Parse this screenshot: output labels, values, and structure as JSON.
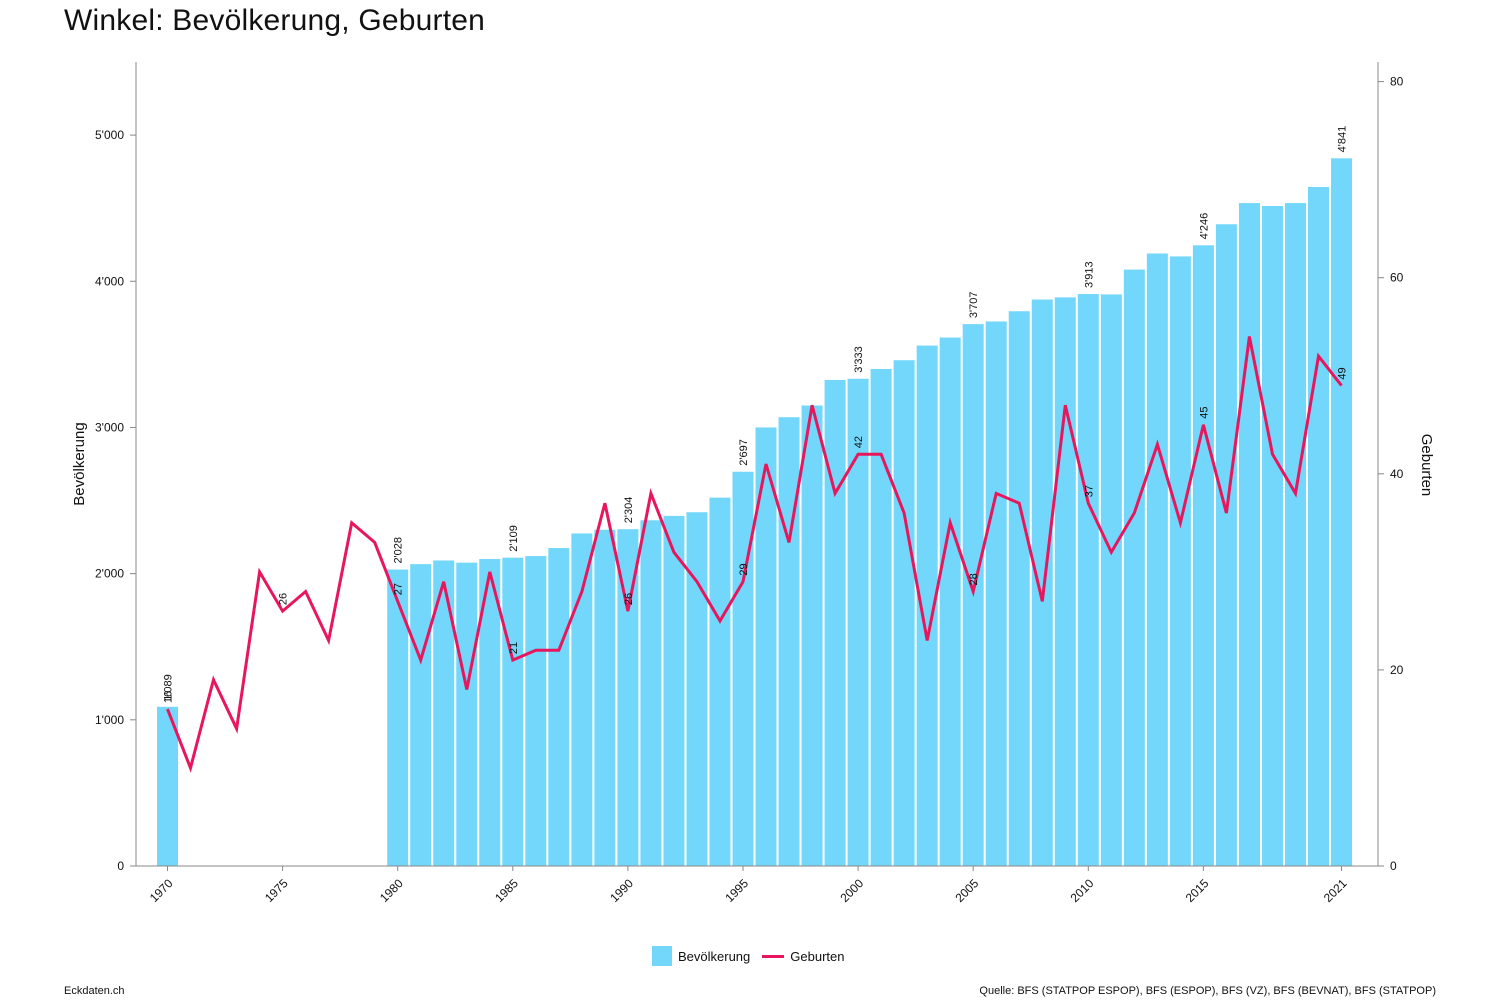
{
  "header": {
    "title": "Winkel: Bevölkerung, Geburten"
  },
  "footer": {
    "left": "Eckdaten.ch",
    "right": "Quelle: BFS (STATPOP ESPOP), BFS (ESPOP), BFS (VZ), BFS (BEVNAT), BFS (STATPOP)"
  },
  "colors": {
    "bars": "#72D7FA",
    "line": "#E8175D",
    "axis": "#888888"
  },
  "legend": {
    "bars_label": "Bevölkerung",
    "line_label": "Geburten"
  },
  "chart_data": {
    "type": "bar+line",
    "x_ticks": [
      "1970",
      "1975",
      "1980",
      "1985",
      "1990",
      "1995",
      "2000",
      "2005",
      "2010",
      "2015",
      "2021"
    ],
    "y_left": {
      "label": "Bevölkerung",
      "range": [
        0,
        5500
      ],
      "ticks": [
        0,
        1000,
        2000,
        3000,
        4000,
        5000
      ],
      "tick_labels": [
        "0",
        "1'000",
        "2'000",
        "3'000",
        "4'000",
        "5'000"
      ]
    },
    "y_right": {
      "label": "Geburten",
      "range": [
        0,
        82
      ],
      "ticks": [
        0,
        20,
        40,
        60,
        80
      ],
      "tick_labels": [
        "0",
        "20",
        "40",
        "60",
        "80"
      ]
    },
    "series": [
      {
        "name": "Bevölkerung",
        "kind": "bar",
        "axis": "left",
        "points": [
          [
            1970,
            1089
          ],
          [
            1980,
            2028
          ],
          [
            1981,
            2065
          ],
          [
            1982,
            2090
          ],
          [
            1983,
            2075
          ],
          [
            1984,
            2100
          ],
          [
            1985,
            2109
          ],
          [
            1986,
            2120
          ],
          [
            1987,
            2175
          ],
          [
            1988,
            2275
          ],
          [
            1989,
            2300
          ],
          [
            1990,
            2304
          ],
          [
            1991,
            2365
          ],
          [
            1992,
            2395
          ],
          [
            1993,
            2420
          ],
          [
            1994,
            2520
          ],
          [
            1995,
            2697
          ],
          [
            1996,
            3000
          ],
          [
            1997,
            3070
          ],
          [
            1998,
            3150
          ],
          [
            1999,
            3325
          ],
          [
            2000,
            3333
          ],
          [
            2001,
            3400
          ],
          [
            2002,
            3460
          ],
          [
            2003,
            3560
          ],
          [
            2004,
            3615
          ],
          [
            2005,
            3707
          ],
          [
            2006,
            3725
          ],
          [
            2007,
            3795
          ],
          [
            2008,
            3875
          ],
          [
            2009,
            3890
          ],
          [
            2010,
            3913
          ],
          [
            2011,
            3910
          ],
          [
            2012,
            4080
          ],
          [
            2013,
            4190
          ],
          [
            2014,
            4170
          ],
          [
            2015,
            4246
          ],
          [
            2016,
            4390
          ],
          [
            2017,
            4535
          ],
          [
            2018,
            4515
          ],
          [
            2019,
            4535
          ],
          [
            2020,
            4645
          ],
          [
            2021,
            4841
          ]
        ]
      },
      {
        "name": "Geburten",
        "kind": "line",
        "axis": "right",
        "points": [
          [
            1970,
            16
          ],
          [
            1971,
            10
          ],
          [
            1972,
            19
          ],
          [
            1973,
            14
          ],
          [
            1974,
            30
          ],
          [
            1975,
            26
          ],
          [
            1976,
            28
          ],
          [
            1977,
            23
          ],
          [
            1978,
            35
          ],
          [
            1979,
            33
          ],
          [
            1980,
            27
          ],
          [
            1981,
            21
          ],
          [
            1982,
            29
          ],
          [
            1983,
            18
          ],
          [
            1984,
            30
          ],
          [
            1985,
            21
          ],
          [
            1986,
            22
          ],
          [
            1987,
            22
          ],
          [
            1988,
            28
          ],
          [
            1989,
            37
          ],
          [
            1990,
            26
          ],
          [
            1991,
            38
          ],
          [
            1992,
            32
          ],
          [
            1993,
            29
          ],
          [
            1994,
            25
          ],
          [
            1995,
            29
          ],
          [
            1996,
            41
          ],
          [
            1997,
            33
          ],
          [
            1998,
            47
          ],
          [
            1999,
            38
          ],
          [
            2000,
            42
          ],
          [
            2001,
            42
          ],
          [
            2002,
            36
          ],
          [
            2003,
            23
          ],
          [
            2004,
            35
          ],
          [
            2005,
            28
          ],
          [
            2006,
            38
          ],
          [
            2007,
            37
          ],
          [
            2008,
            27
          ],
          [
            2009,
            47
          ],
          [
            2010,
            37
          ],
          [
            2011,
            32
          ],
          [
            2012,
            36
          ],
          [
            2013,
            43
          ],
          [
            2014,
            35
          ],
          [
            2015,
            45
          ],
          [
            2016,
            36
          ],
          [
            2017,
            54
          ],
          [
            2018,
            42
          ],
          [
            2019,
            38
          ],
          [
            2020,
            52
          ],
          [
            2021,
            49
          ]
        ]
      }
    ],
    "bar_labels": [
      {
        "year": 1970,
        "text": "1'089"
      },
      {
        "year": 1980,
        "text": "2'028"
      },
      {
        "year": 1985,
        "text": "2'109"
      },
      {
        "year": 1990,
        "text": "2'304"
      },
      {
        "year": 1995,
        "text": "2'697"
      },
      {
        "year": 2000,
        "text": "3'333"
      },
      {
        "year": 2005,
        "text": "3'707"
      },
      {
        "year": 2010,
        "text": "3'913"
      },
      {
        "year": 2015,
        "text": "4'246"
      },
      {
        "year": 2021,
        "text": "4'841"
      }
    ],
    "line_labels": [
      {
        "year": 1970,
        "text": "16"
      },
      {
        "year": 1975,
        "text": "26"
      },
      {
        "year": 1980,
        "text": "27"
      },
      {
        "year": 1985,
        "text": "21"
      },
      {
        "year": 1990,
        "text": "26"
      },
      {
        "year": 1995,
        "text": "29"
      },
      {
        "year": 2000,
        "text": "42"
      },
      {
        "year": 2005,
        "text": "28"
      },
      {
        "year": 2010,
        "text": "37"
      },
      {
        "year": 2015,
        "text": "45"
      },
      {
        "year": 2021,
        "text": "49"
      }
    ],
    "legend_position": "bottom-center",
    "grid": false
  }
}
